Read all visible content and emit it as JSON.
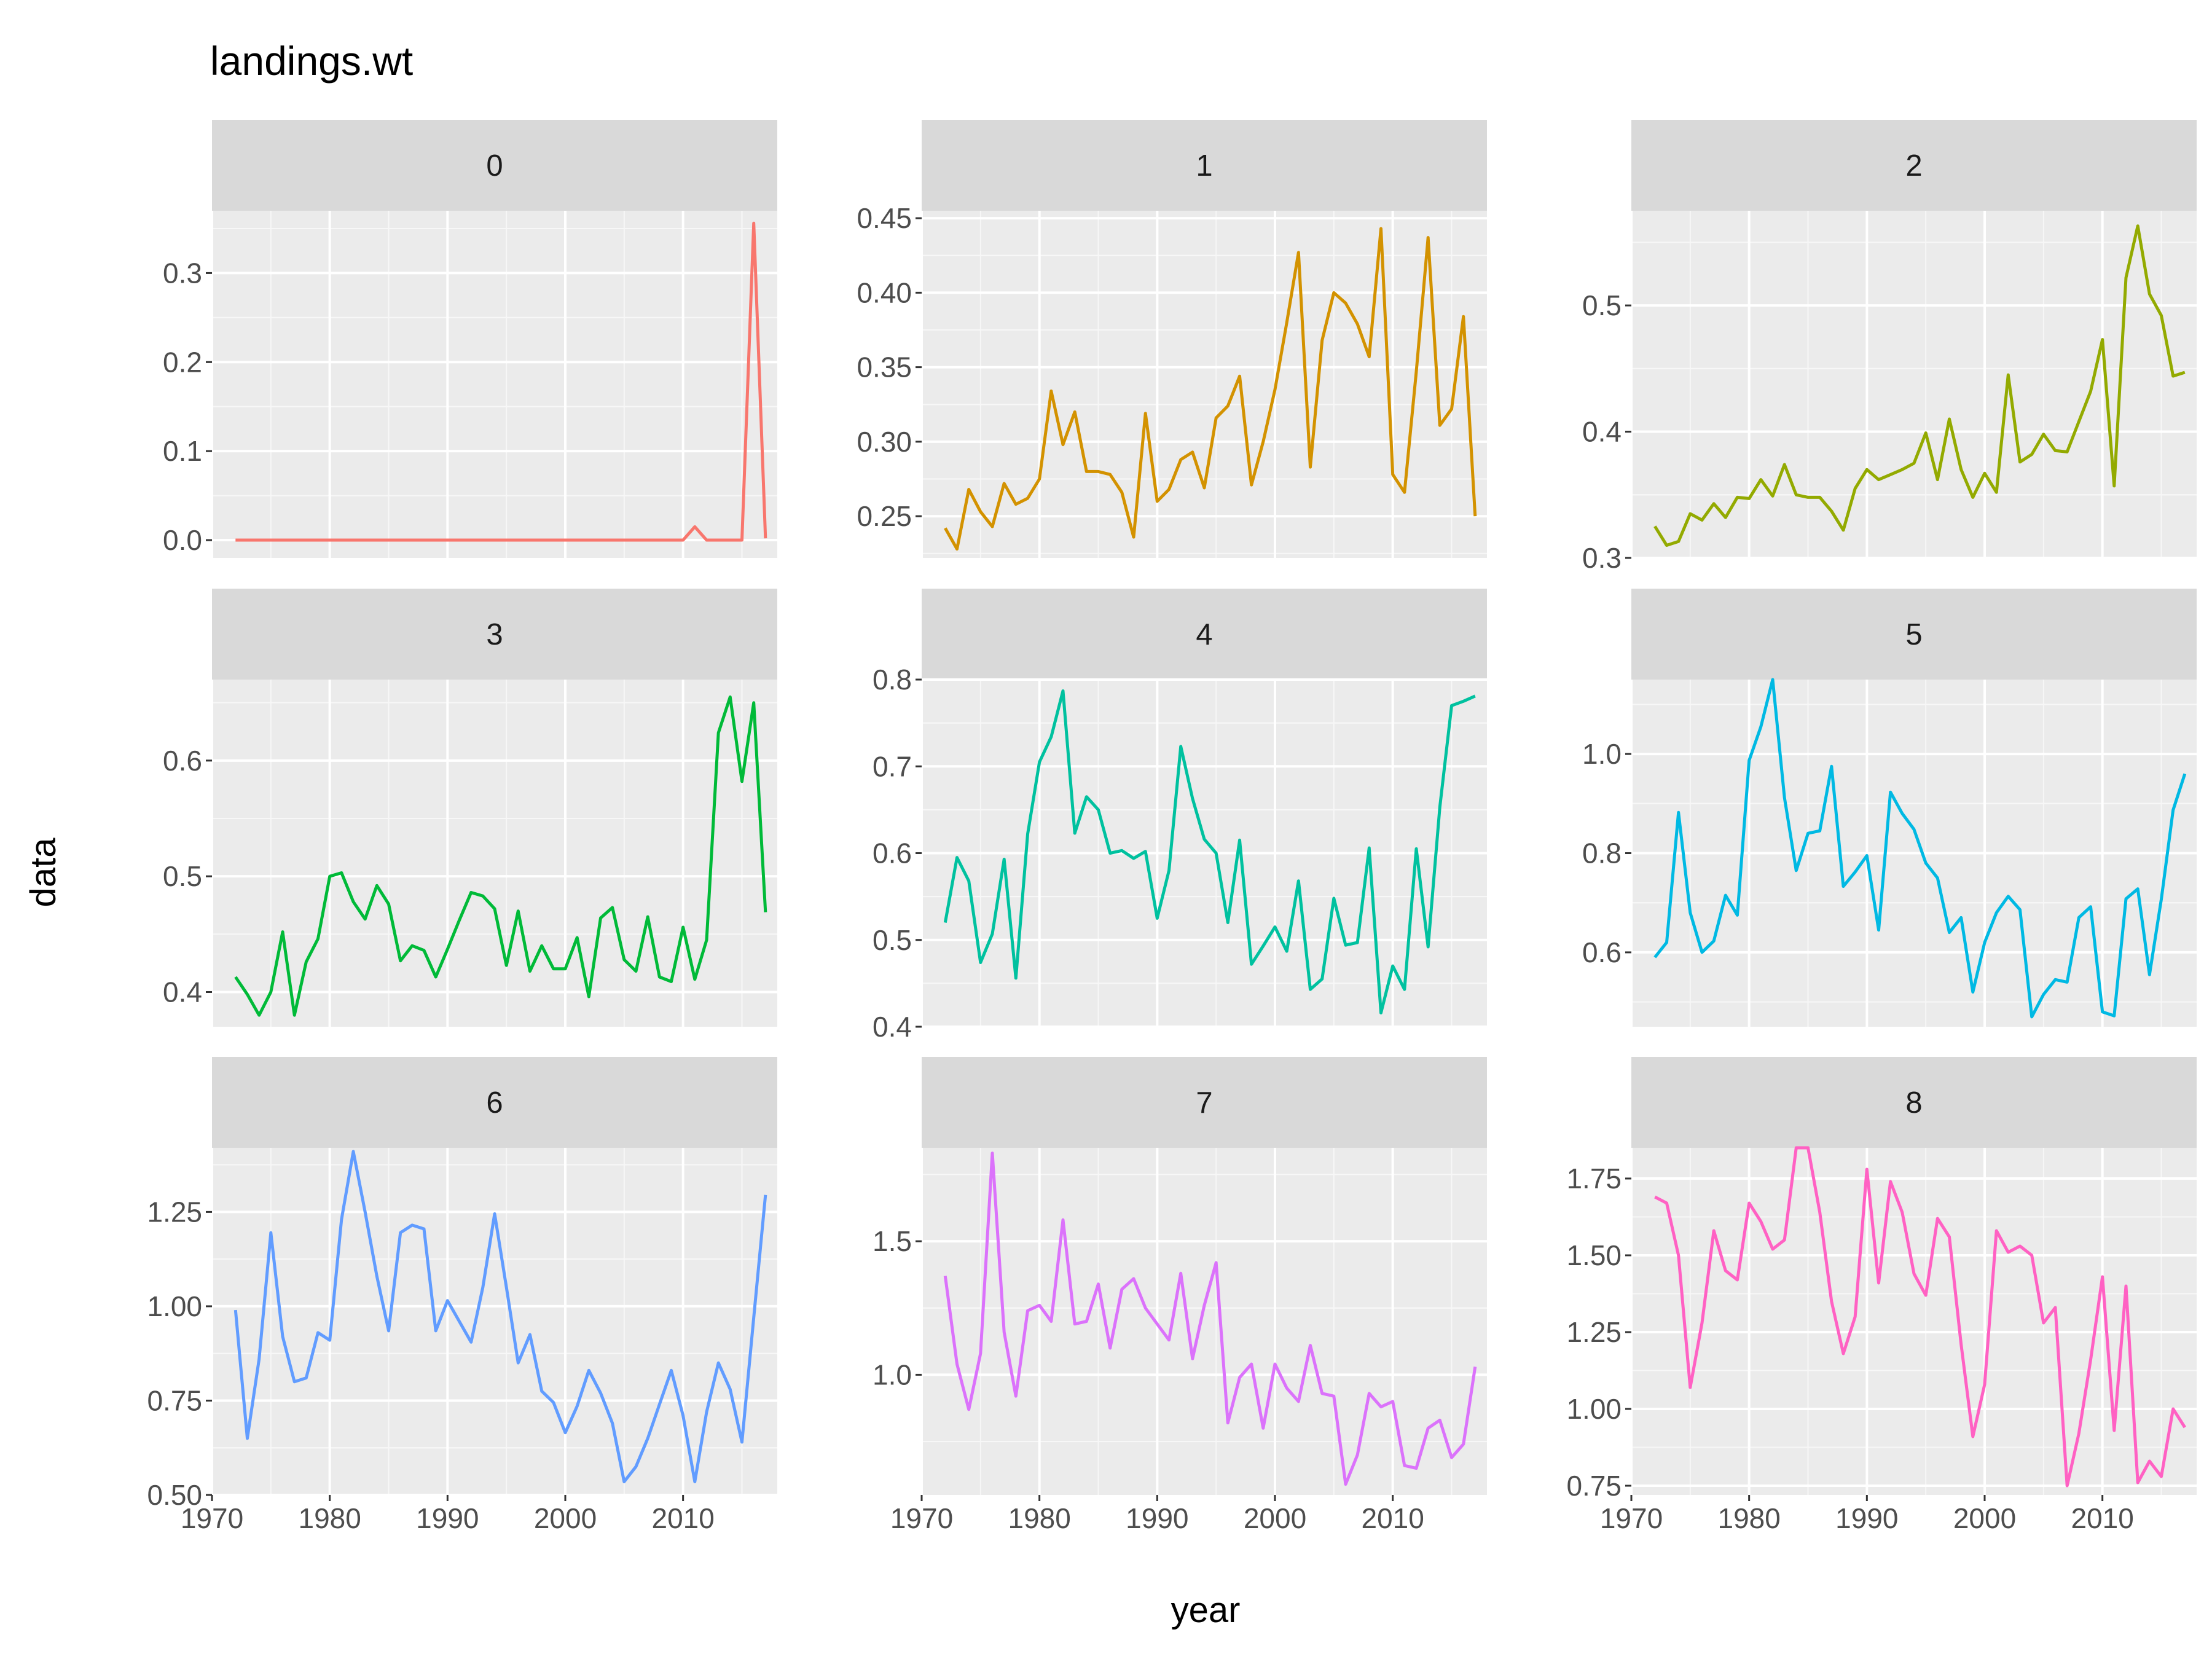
{
  "chart_data": {
    "type": "line",
    "title": "landings.wt",
    "xlabel": "year",
    "ylabel": "data",
    "facet_layout": "3x3",
    "shared_x_axis": true,
    "free_y_axis": true,
    "grid": true,
    "panel_background": "#EBEBEB",
    "strip_background": "#D9D9D9",
    "xlim": [
      1970,
      2018
    ],
    "x_ticks": [
      1970,
      1980,
      1990,
      2000,
      2010
    ],
    "x_tick_labels": [
      "1970",
      "1980",
      "1990",
      "2000",
      "2010"
    ],
    "x": [
      1972,
      1973,
      1974,
      1975,
      1976,
      1977,
      1978,
      1979,
      1980,
      1981,
      1982,
      1983,
      1984,
      1985,
      1986,
      1987,
      1988,
      1989,
      1990,
      1991,
      1992,
      1993,
      1994,
      1995,
      1996,
      1997,
      1998,
      1999,
      2000,
      2001,
      2002,
      2003,
      2004,
      2005,
      2006,
      2007,
      2008,
      2009,
      2010,
      2011,
      2012,
      2013,
      2014,
      2015,
      2016,
      2017
    ],
    "panels": [
      {
        "strip": "0",
        "color": "#F8766D",
        "ylim": [
          -0.02,
          0.37
        ],
        "y_ticks": [
          0.0,
          0.1,
          0.2,
          0.3
        ],
        "y_tick_labels": [
          "0.0",
          "0.1",
          "0.2",
          "0.3"
        ],
        "values": [
          0,
          0,
          0,
          0,
          0,
          0,
          0,
          0,
          0,
          0,
          0,
          0,
          0,
          0,
          0,
          0,
          0,
          0,
          0,
          0,
          0,
          0,
          0,
          0,
          0,
          0,
          0,
          0,
          0,
          0,
          0,
          0,
          0,
          0,
          0,
          0,
          0,
          0,
          0,
          0.015,
          0,
          0,
          0,
          0,
          0.356,
          0.002
        ]
      },
      {
        "strip": "1",
        "color": "#D39200",
        "ylim": [
          0.222,
          0.455
        ],
        "y_ticks": [
          0.25,
          0.3,
          0.35,
          0.4,
          0.45
        ],
        "y_tick_labels": [
          "0.25",
          "0.30",
          "0.35",
          "0.40",
          "0.45"
        ],
        "values": [
          0.242,
          0.228,
          0.268,
          0.253,
          0.243,
          0.272,
          0.258,
          0.262,
          0.275,
          0.334,
          0.298,
          0.32,
          0.28,
          0.28,
          0.278,
          0.266,
          0.236,
          0.319,
          0.26,
          0.268,
          0.288,
          0.293,
          0.269,
          0.316,
          0.324,
          0.344,
          0.271,
          0.3,
          0.335,
          0.38,
          0.427,
          0.283,
          0.368,
          0.4,
          0.393,
          0.379,
          0.357,
          0.443,
          0.278,
          0.266,
          0.347,
          0.437,
          0.311,
          0.322,
          0.384,
          0.25
        ]
      },
      {
        "strip": "2",
        "color": "#93AA00",
        "ylim": [
          0.3,
          0.575
        ],
        "y_ticks": [
          0.3,
          0.4,
          0.5
        ],
        "y_tick_labels": [
          "0.3",
          "0.4",
          "0.5"
        ],
        "values": [
          0.325,
          0.31,
          0.313,
          0.335,
          0.33,
          0.343,
          0.332,
          0.348,
          0.347,
          0.362,
          0.349,
          0.374,
          0.35,
          0.348,
          0.348,
          0.337,
          0.322,
          0.355,
          0.37,
          0.362,
          0.366,
          0.37,
          0.375,
          0.399,
          0.362,
          0.41,
          0.37,
          0.348,
          0.367,
          0.352,
          0.445,
          0.376,
          0.382,
          0.398,
          0.385,
          0.384,
          0.408,
          0.432,
          0.473,
          0.357,
          0.522,
          0.563,
          0.509,
          0.492,
          0.444,
          0.447
        ]
      },
      {
        "strip": "3",
        "color": "#00BA38",
        "ylim": [
          0.37,
          0.67
        ],
        "y_ticks": [
          0.4,
          0.5,
          0.6
        ],
        "y_tick_labels": [
          "0.4",
          "0.5",
          "0.6"
        ],
        "values": [
          0.413,
          0.398,
          0.38,
          0.4,
          0.452,
          0.38,
          0.426,
          0.446,
          0.5,
          0.503,
          0.478,
          0.463,
          0.492,
          0.476,
          0.427,
          0.44,
          0.436,
          0.413,
          0.437,
          0.462,
          0.486,
          0.483,
          0.472,
          0.423,
          0.47,
          0.418,
          0.44,
          0.42,
          0.42,
          0.447,
          0.396,
          0.464,
          0.473,
          0.428,
          0.418,
          0.465,
          0.413,
          0.409,
          0.456,
          0.411,
          0.445,
          0.624,
          0.655,
          0.582,
          0.65,
          0.469
        ]
      },
      {
        "strip": "4",
        "color": "#00C19F",
        "ylim": [
          0.4,
          0.8
        ],
        "y_ticks": [
          0.4,
          0.5,
          0.6,
          0.7,
          0.8
        ],
        "y_tick_labels": [
          "0.4",
          "0.5",
          "0.6",
          "0.7",
          "0.8"
        ],
        "values": [
          0.52,
          0.595,
          0.568,
          0.474,
          0.507,
          0.593,
          0.456,
          0.622,
          0.705,
          0.734,
          0.787,
          0.623,
          0.665,
          0.65,
          0.6,
          0.603,
          0.594,
          0.602,
          0.525,
          0.58,
          0.723,
          0.663,
          0.616,
          0.6,
          0.52,
          0.615,
          0.472,
          0.493,
          0.515,
          0.487,
          0.568,
          0.443,
          0.455,
          0.548,
          0.494,
          0.497,
          0.606,
          0.416,
          0.47,
          0.443,
          0.605,
          0.492,
          0.653,
          0.77,
          0.775,
          0.781
        ]
      },
      {
        "strip": "5",
        "color": "#00B9E3",
        "ylim": [
          0.45,
          1.15
        ],
        "y_ticks": [
          0.6,
          0.8,
          1.0
        ],
        "y_tick_labels": [
          "0.6",
          "0.8",
          "1.0"
        ],
        "values": [
          0.59,
          0.62,
          0.882,
          0.68,
          0.6,
          0.623,
          0.715,
          0.675,
          0.987,
          1.055,
          1.15,
          0.912,
          0.765,
          0.84,
          0.845,
          0.975,
          0.733,
          0.762,
          0.795,
          0.645,
          0.923,
          0.88,
          0.848,
          0.78,
          0.75,
          0.64,
          0.67,
          0.52,
          0.62,
          0.68,
          0.713,
          0.686,
          0.47,
          0.515,
          0.545,
          0.54,
          0.67,
          0.692,
          0.48,
          0.472,
          0.708,
          0.728,
          0.555,
          0.707,
          0.887,
          0.96
        ]
      },
      {
        "strip": "6",
        "color": "#619CFF",
        "ylim": [
          0.5,
          1.42
        ],
        "y_ticks": [
          0.5,
          0.75,
          1.0,
          1.25
        ],
        "y_tick_labels": [
          "0.50",
          "0.75",
          "1.00",
          "1.25"
        ],
        "values": [
          0.99,
          0.65,
          0.86,
          1.195,
          0.92,
          0.8,
          0.81,
          0.93,
          0.91,
          1.23,
          1.41,
          1.25,
          1.08,
          0.935,
          1.195,
          1.215,
          1.205,
          0.935,
          1.015,
          0.96,
          0.905,
          1.05,
          1.245,
          1.05,
          0.85,
          0.925,
          0.775,
          0.745,
          0.665,
          0.735,
          0.83,
          0.77,
          0.69,
          0.535,
          0.575,
          0.65,
          0.74,
          0.83,
          0.71,
          0.535,
          0.72,
          0.85,
          0.78,
          0.64,
          0.97,
          1.295
        ]
      },
      {
        "strip": "7",
        "color": "#DB72FB",
        "ylim": [
          0.55,
          1.85
        ],
        "y_ticks": [
          1.0,
          1.5
        ],
        "y_tick_labels": [
          "1.0",
          "1.5"
        ],
        "values": [
          1.37,
          1.04,
          0.87,
          1.08,
          1.83,
          1.16,
          0.92,
          1.24,
          1.26,
          1.2,
          1.58,
          1.19,
          1.2,
          1.34,
          1.1,
          1.32,
          1.36,
          1.25,
          1.19,
          1.13,
          1.38,
          1.06,
          1.26,
          1.42,
          0.82,
          0.99,
          1.04,
          0.8,
          1.04,
          0.95,
          0.9,
          1.11,
          0.93,
          0.92,
          0.59,
          0.7,
          0.93,
          0.88,
          0.9,
          0.66,
          0.65,
          0.8,
          0.83,
          0.69,
          0.74,
          1.03
        ]
      },
      {
        "strip": "8",
        "color": "#FF61C3",
        "ylim": [
          0.72,
          1.85
        ],
        "y_ticks": [
          0.75,
          1.0,
          1.25,
          1.5,
          1.75
        ],
        "y_tick_labels": [
          "0.75",
          "1.00",
          "1.25",
          "1.50",
          "1.75"
        ],
        "values": [
          1.69,
          1.67,
          1.5,
          1.07,
          1.28,
          1.58,
          1.45,
          1.42,
          1.67,
          1.61,
          1.52,
          1.55,
          1.85,
          1.85,
          1.64,
          1.35,
          1.18,
          1.3,
          1.78,
          1.41,
          1.74,
          1.64,
          1.44,
          1.37,
          1.62,
          1.56,
          1.21,
          0.91,
          1.08,
          1.58,
          1.51,
          1.53,
          1.5,
          1.28,
          1.33,
          0.75,
          0.92,
          1.16,
          1.43,
          0.93,
          1.4,
          0.76,
          0.83,
          0.78,
          1.0,
          0.94
        ]
      }
    ]
  }
}
